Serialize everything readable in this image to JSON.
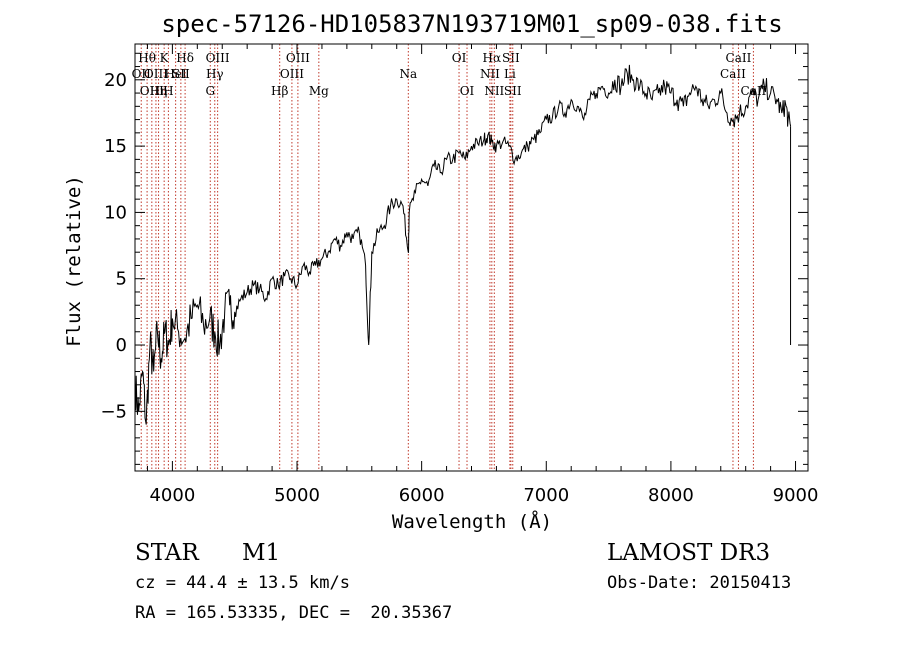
{
  "chart_data": {
    "type": "line",
    "title": "spec-57126-HD105837N193719M01_sp09-038.fits",
    "xlabel": "Wavelength (Å)",
    "ylabel": "Flux (relative)",
    "xlim": [
      3700,
      9100
    ],
    "ylim": [
      -9.5,
      22.7
    ],
    "xticks": [
      4000,
      5000,
      6000,
      7000,
      8000,
      9000
    ],
    "yticks": [
      -5,
      0,
      5,
      10,
      15,
      20
    ],
    "xtick_labels": [
      "4000",
      "5000",
      "6000",
      "7000",
      "8000",
      "9000"
    ],
    "ytick_labels": [
      "−5",
      "0",
      "5",
      "10",
      "15",
      "20"
    ],
    "series": [
      {
        "name": "flux",
        "x": [
          3700,
          3730,
          3760,
          3790,
          3820,
          3850,
          3880,
          3910,
          3940,
          3970,
          4000,
          4050,
          4100,
          4150,
          4200,
          4250,
          4300,
          4340,
          4380,
          4420,
          4460,
          4500,
          4550,
          4600,
          4650,
          4700,
          4750,
          4800,
          4850,
          4900,
          4950,
          5000,
          5050,
          5100,
          5150,
          5200,
          5250,
          5300,
          5350,
          5400,
          5450,
          5500,
          5550,
          5575,
          5600,
          5650,
          5700,
          5750,
          5800,
          5850,
          5893,
          5900,
          5950,
          6000,
          6050,
          6100,
          6150,
          6200,
          6250,
          6300,
          6350,
          6400,
          6450,
          6500,
          6530,
          6563,
          6600,
          6650,
          6700,
          6750,
          6800,
          6850,
          6900,
          6950,
          7000,
          7050,
          7100,
          7150,
          7200,
          7250,
          7300,
          7350,
          7400,
          7450,
          7500,
          7550,
          7600,
          7650,
          7700,
          7750,
          7800,
          7850,
          7900,
          7950,
          8000,
          8050,
          8100,
          8150,
          8200,
          8250,
          8300,
          8350,
          8400,
          8450,
          8500,
          8550,
          8600,
          8650,
          8700,
          8750,
          8800,
          8850,
          8890,
          8920,
          8940,
          8960
        ],
        "y": [
          -3,
          -5,
          -2,
          -6,
          0,
          -2,
          1,
          -1,
          1,
          0,
          2,
          1,
          0.5,
          2,
          3,
          1.5,
          2,
          1,
          0,
          2.5,
          3,
          2.5,
          3.5,
          4,
          4.5,
          4.2,
          3.5,
          5,
          4.5,
          5.2,
          5,
          4.5,
          6,
          5.5,
          6,
          6.5,
          7,
          8,
          7.5,
          8.5,
          8,
          8.5,
          6,
          0,
          7,
          8.5,
          9,
          10.5,
          11,
          10.5,
          7,
          10,
          11.5,
          12.5,
          12,
          13.5,
          13,
          14,
          14,
          14.5,
          14,
          15,
          15.2,
          15.5,
          15.8,
          15.3,
          15,
          15.3,
          15,
          14,
          14.5,
          15,
          15.5,
          16,
          17,
          17.2,
          18,
          17.5,
          18.5,
          18,
          17,
          18.5,
          19,
          19.5,
          19,
          20,
          19.5,
          20.5,
          20,
          19.5,
          19,
          18.5,
          19,
          19.5,
          19,
          18.5,
          18,
          19,
          19.5,
          18.5,
          18,
          18.5,
          19,
          17.5,
          17,
          17.5,
          18,
          19,
          18.5,
          19.5,
          19,
          18.5,
          17.5,
          18.2,
          17,
          16.5
        ]
      }
    ],
    "line_markers": [
      {
        "wl": 3750,
        "label": "OII",
        "row": 2
      },
      {
        "wl": 3797,
        "label": "Hθ",
        "row": 1
      },
      {
        "wl": 3835,
        "label": "OIII",
        "row": 3
      },
      {
        "wl": 3868,
        "label": "OIII",
        "row": 2
      },
      {
        "wl": 3889,
        "label": "Hη",
        "row": 3
      },
      {
        "wl": 3934,
        "label": "K",
        "row": 1
      },
      {
        "wl": 3968,
        "label": "H",
        "row": 3
      },
      {
        "wl": 4026,
        "label": "HeI",
        "row": 2
      },
      {
        "wl": 4068,
        "label": "SII",
        "row": 2
      },
      {
        "wl": 4102,
        "label": "Hδ",
        "row": 1
      },
      {
        "wl": 4304,
        "label": "G",
        "row": 3
      },
      {
        "wl": 4340,
        "label": "Hγ",
        "row": 2
      },
      {
        "wl": 4363,
        "label": "OIII",
        "row": 1
      },
      {
        "wl": 4861,
        "label": "Hβ",
        "row": 3
      },
      {
        "wl": 4959,
        "label": "OIII",
        "row": 2
      },
      {
        "wl": 5007,
        "label": "OIII",
        "row": 1
      },
      {
        "wl": 5175,
        "label": "Mg",
        "row": 3
      },
      {
        "wl": 5893,
        "label": "Na",
        "row": 2
      },
      {
        "wl": 6300,
        "label": "OI",
        "row": 1
      },
      {
        "wl": 6364,
        "label": "OI",
        "row": 3
      },
      {
        "wl": 6548,
        "label": "NII",
        "row": 2
      },
      {
        "wl": 6563,
        "label": "Hα",
        "row": 1
      },
      {
        "wl": 6583,
        "label": "NII",
        "row": 3
      },
      {
        "wl": 6708,
        "label": "Li",
        "row": 2
      },
      {
        "wl": 6716,
        "label": "SII",
        "row": 1
      },
      {
        "wl": 6731,
        "label": "SII",
        "row": 3
      },
      {
        "wl": 8498,
        "label": "CaII",
        "row": 2
      },
      {
        "wl": 8542,
        "label": "CaII",
        "row": 1
      },
      {
        "wl": 8662,
        "label": "CaII",
        "row": 3
      }
    ]
  },
  "info": {
    "object_type": "STAR",
    "subclass": "M1",
    "survey": "LAMOST DR3",
    "cz": "cz = 44.4 ± 13.5 km/s",
    "obs_date": "Obs-Date: 20150413",
    "coords": "RA = 165.53335, DEC =  20.35367"
  },
  "colors": {
    "spectrum": "#000000",
    "marker_line": "#c0392b",
    "axes": "#000000"
  }
}
